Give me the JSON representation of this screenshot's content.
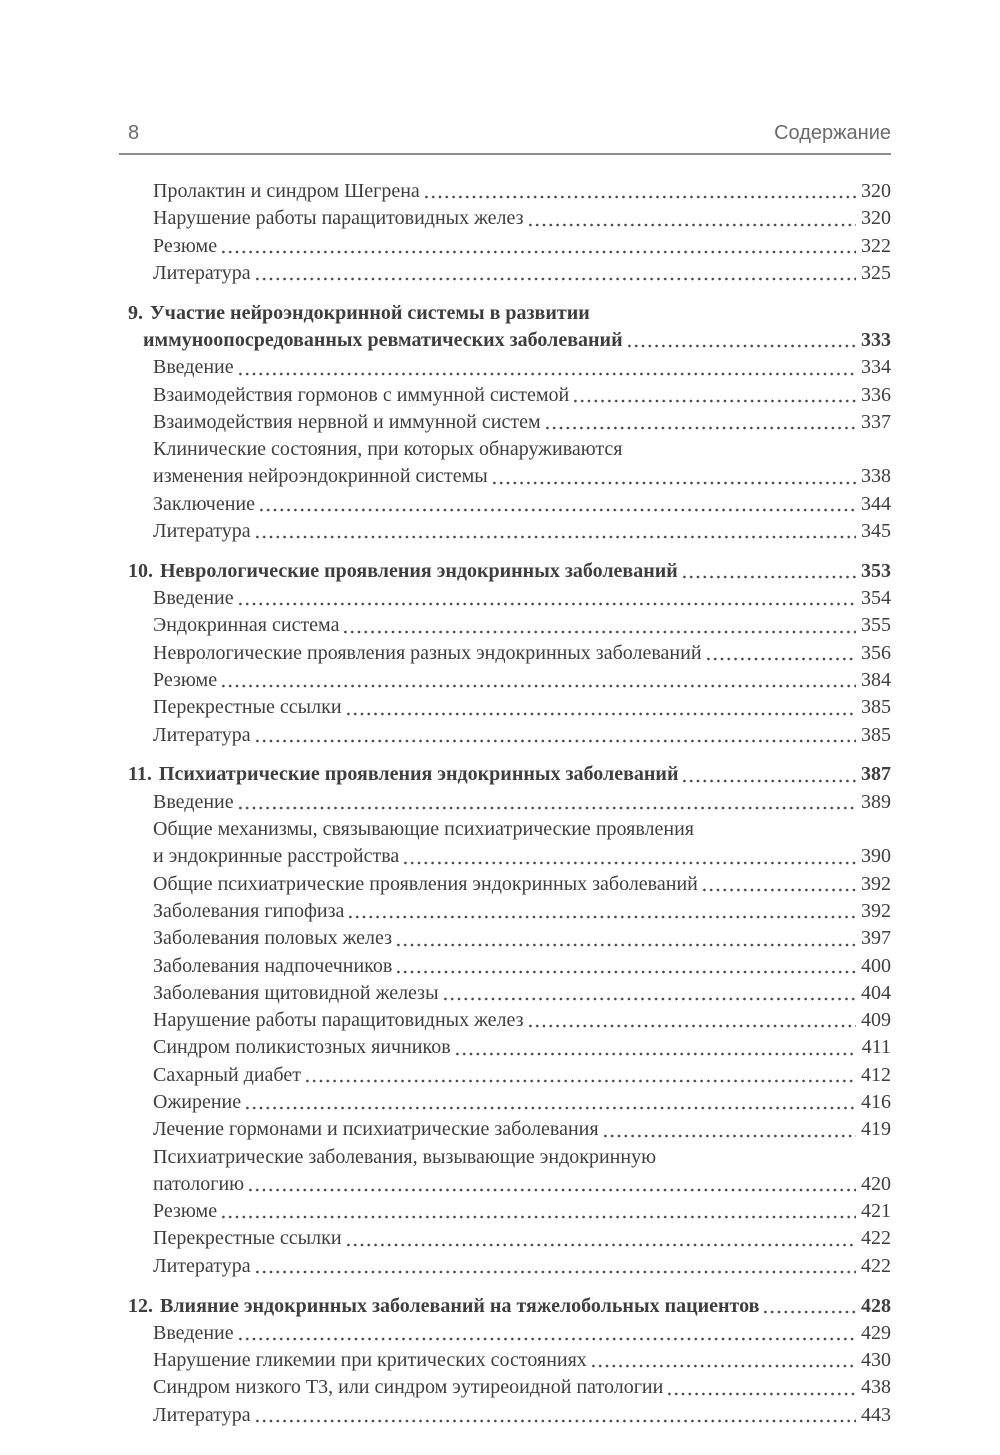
{
  "header": {
    "page_number": "8",
    "title": "Содержание"
  },
  "colors": {
    "body_text": "#3e3e3e",
    "header_text": "#6b6b6b",
    "rule": "#8e8e8e",
    "dots": "#4a4a4a",
    "background": "#ffffff"
  },
  "toc": {
    "entries": [
      {
        "level": "sub",
        "lines": [
          "Пролактин и синдром Шегрена"
        ],
        "page": "320"
      },
      {
        "level": "sub",
        "lines": [
          "Нарушение работы паращитовидных желез"
        ],
        "page": "320"
      },
      {
        "level": "sub",
        "lines": [
          "Резюме"
        ],
        "page": "322"
      },
      {
        "level": "sub",
        "lines": [
          "Литература"
        ],
        "page": "325"
      },
      {
        "level": "chapter",
        "number": "9.",
        "lines": [
          "Участие нейроэндокринной системы в развитии",
          "иммуноопосредованных ревматических заболеваний"
        ],
        "page": "333"
      },
      {
        "level": "sub",
        "lines": [
          "Введение"
        ],
        "page": "334"
      },
      {
        "level": "sub",
        "lines": [
          "Взаимодействия гормонов с иммунной системой"
        ],
        "page": "336"
      },
      {
        "level": "sub",
        "lines": [
          "Взаимодействия нервной и иммунной систем"
        ],
        "page": "337"
      },
      {
        "level": "sub",
        "lines": [
          "Клинические состояния, при которых обнаруживаются",
          "изменения нейроэндокринной системы"
        ],
        "page": "338"
      },
      {
        "level": "sub",
        "lines": [
          "Заключение"
        ],
        "page": "344"
      },
      {
        "level": "sub",
        "lines": [
          "Литература"
        ],
        "page": "345"
      },
      {
        "level": "chapter",
        "number": "10.",
        "lines": [
          "Неврологические проявления эндокринных заболеваний"
        ],
        "page": "353"
      },
      {
        "level": "sub",
        "lines": [
          "Введение"
        ],
        "page": "354"
      },
      {
        "level": "sub",
        "lines": [
          "Эндокринная система"
        ],
        "page": "355"
      },
      {
        "level": "sub",
        "lines": [
          "Неврологические проявления разных эндокринных заболеваний"
        ],
        "page": "356"
      },
      {
        "level": "sub",
        "lines": [
          "Резюме"
        ],
        "page": "384"
      },
      {
        "level": "sub",
        "lines": [
          "Перекрестные ссылки"
        ],
        "page": "385"
      },
      {
        "level": "sub",
        "lines": [
          "Литература"
        ],
        "page": "385"
      },
      {
        "level": "chapter",
        "number": "11.",
        "lines": [
          "Психиатрические проявления эндокринных заболеваний"
        ],
        "page": "387"
      },
      {
        "level": "sub",
        "lines": [
          "Введение"
        ],
        "page": "389"
      },
      {
        "level": "sub",
        "lines": [
          "Общие механизмы, связывающие психиатрические проявления",
          "и эндокринные расстройства"
        ],
        "page": "390"
      },
      {
        "level": "sub",
        "lines": [
          "Общие психиатрические проявления эндокринных заболеваний"
        ],
        "page": "392"
      },
      {
        "level": "sub",
        "lines": [
          "Заболевания гипофиза"
        ],
        "page": "392"
      },
      {
        "level": "sub",
        "lines": [
          "Заболевания половых желез"
        ],
        "page": "397"
      },
      {
        "level": "sub",
        "lines": [
          "Заболевания надпочечников"
        ],
        "page": "400"
      },
      {
        "level": "sub",
        "lines": [
          "Заболевания щитовидной железы"
        ],
        "page": "404"
      },
      {
        "level": "sub",
        "lines": [
          "Нарушение работы паращитовидных желез"
        ],
        "page": "409"
      },
      {
        "level": "sub",
        "lines": [
          "Синдром поликистозных яичников"
        ],
        "page": "411"
      },
      {
        "level": "sub",
        "lines": [
          "Сахарный диабет"
        ],
        "page": "412"
      },
      {
        "level": "sub",
        "lines": [
          "Ожирение"
        ],
        "page": "416"
      },
      {
        "level": "sub",
        "lines": [
          "Лечение гормонами и психиатрические заболевания"
        ],
        "page": "419"
      },
      {
        "level": "sub",
        "lines": [
          "Психиатрические заболевания, вызывающие эндокринную",
          "патологию"
        ],
        "page": "420"
      },
      {
        "level": "sub",
        "lines": [
          "Резюме"
        ],
        "page": "421"
      },
      {
        "level": "sub",
        "lines": [
          "Перекрестные ссылки"
        ],
        "page": "422"
      },
      {
        "level": "sub",
        "lines": [
          "Литература"
        ],
        "page": "422"
      },
      {
        "level": "chapter",
        "number": "12.",
        "lines": [
          "Влияние эндокринных заболеваний на тяжелобольных пациентов"
        ],
        "page": "428"
      },
      {
        "level": "sub",
        "lines": [
          "Введение"
        ],
        "page": "429"
      },
      {
        "level": "sub",
        "lines": [
          "Нарушение гликемии при критических состояниях"
        ],
        "page": "430"
      },
      {
        "level": "sub",
        "lines": [
          "Синдром низкого Т3, или синдром эутиреоидной патологии"
        ],
        "page": "438"
      },
      {
        "level": "sub",
        "lines": [
          "Литература"
        ],
        "page": "443"
      }
    ]
  }
}
